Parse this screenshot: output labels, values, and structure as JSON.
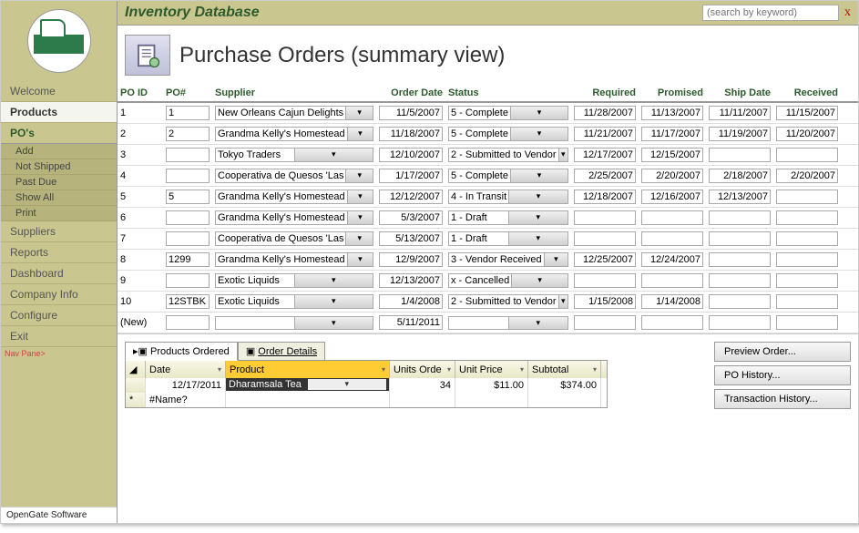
{
  "app": {
    "title": "Inventory Database",
    "search_placeholder": "(search by keyword)"
  },
  "header": {
    "title": "Purchase Orders (summary view)"
  },
  "sidebar": {
    "items": [
      {
        "label": "Welcome",
        "type": "item"
      },
      {
        "label": "Products",
        "type": "bold"
      },
      {
        "label": "PO's",
        "type": "section"
      }
    ],
    "po_subs": [
      {
        "label": "Add"
      },
      {
        "label": "Not Shipped"
      },
      {
        "label": "Past Due"
      },
      {
        "label": "Show All"
      },
      {
        "label": "Print"
      }
    ],
    "items2": [
      {
        "label": "Suppliers"
      },
      {
        "label": "Reports"
      },
      {
        "label": "Dashboard"
      },
      {
        "label": "Company Info"
      },
      {
        "label": "Configure"
      },
      {
        "label": "Exit"
      }
    ],
    "nav_pane": "Nav Pane>",
    "footer": "OpenGate Software"
  },
  "grid": {
    "columns": [
      "PO ID",
      "PO#",
      "Supplier",
      "Order Date",
      "Status",
      "Required",
      "Promised",
      "Ship Date",
      "Received"
    ],
    "rows": [
      {
        "poid": "1",
        "ponum": "1",
        "supplier": "New Orleans Cajun Delights",
        "orderdate": "11/5/2007",
        "status": "5 - Complete",
        "required": "11/28/2007",
        "promised": "11/13/2007",
        "shipdate": "11/11/2007",
        "received": "11/15/2007"
      },
      {
        "poid": "2",
        "ponum": "2",
        "supplier": "Grandma Kelly's Homestead",
        "orderdate": "11/18/2007",
        "status": "5 - Complete",
        "required": "11/21/2007",
        "promised": "11/17/2007",
        "shipdate": "11/19/2007",
        "received": "11/20/2007"
      },
      {
        "poid": "3",
        "ponum": "",
        "supplier": "Tokyo Traders",
        "orderdate": "12/10/2007",
        "status": "2 - Submitted to Vendor",
        "required": "12/17/2007",
        "promised": "12/15/2007",
        "shipdate": "",
        "received": ""
      },
      {
        "poid": "4",
        "ponum": "",
        "supplier": "Cooperativa de Quesos 'Las",
        "orderdate": "1/17/2007",
        "status": "5 - Complete",
        "required": "2/25/2007",
        "promised": "2/20/2007",
        "shipdate": "2/18/2007",
        "received": "2/20/2007"
      },
      {
        "poid": "5",
        "ponum": "5",
        "supplier": "Grandma Kelly's Homestead",
        "orderdate": "12/12/2007",
        "status": "4 - In Transit",
        "required": "12/18/2007",
        "promised": "12/16/2007",
        "shipdate": "12/13/2007",
        "received": ""
      },
      {
        "poid": "6",
        "ponum": "",
        "supplier": "Grandma Kelly's Homestead",
        "orderdate": "5/3/2007",
        "status": "1 - Draft",
        "required": "",
        "promised": "",
        "shipdate": "",
        "received": ""
      },
      {
        "poid": "7",
        "ponum": "",
        "supplier": "Cooperativa de Quesos 'Las",
        "orderdate": "5/13/2007",
        "status": "1 - Draft",
        "required": "",
        "promised": "",
        "shipdate": "",
        "received": ""
      },
      {
        "poid": "8",
        "ponum": "1299",
        "supplier": "Grandma Kelly's Homestead",
        "orderdate": "12/9/2007",
        "status": "3 - Vendor Received",
        "required": "12/25/2007",
        "promised": "12/24/2007",
        "shipdate": "",
        "received": ""
      },
      {
        "poid": "9",
        "ponum": "",
        "supplier": "Exotic Liquids",
        "orderdate": "12/13/2007",
        "status": "x - Cancelled",
        "required": "",
        "promised": "",
        "shipdate": "",
        "received": ""
      },
      {
        "poid": "10",
        "ponum": "12STBK",
        "supplier": "Exotic Liquids",
        "orderdate": "1/4/2008",
        "status": "2 - Submitted to Vendor",
        "required": "1/15/2008",
        "promised": "1/14/2008",
        "shipdate": "",
        "received": ""
      },
      {
        "poid": "(New)",
        "ponum": "",
        "supplier": "",
        "orderdate": "5/11/2011",
        "status": "",
        "required": "",
        "promised": "",
        "shipdate": "",
        "received": ""
      }
    ]
  },
  "subpanel": {
    "tabs": [
      {
        "label": "Products Ordered",
        "active": true
      },
      {
        "label": "Order Details",
        "active": false
      }
    ],
    "columns": [
      "Date",
      "Product",
      "Units Orde",
      "Unit Price",
      "Subtotal"
    ],
    "row": {
      "date": "12/17/2011",
      "product": "Dharamsala Tea",
      "units": "34",
      "price": "$11.00",
      "subtotal": "$374.00"
    },
    "newrow_label": "#Name?",
    "buttons": [
      {
        "label": "Preview Order..."
      },
      {
        "label": "PO History..."
      },
      {
        "label": "Transaction History..."
      }
    ]
  }
}
